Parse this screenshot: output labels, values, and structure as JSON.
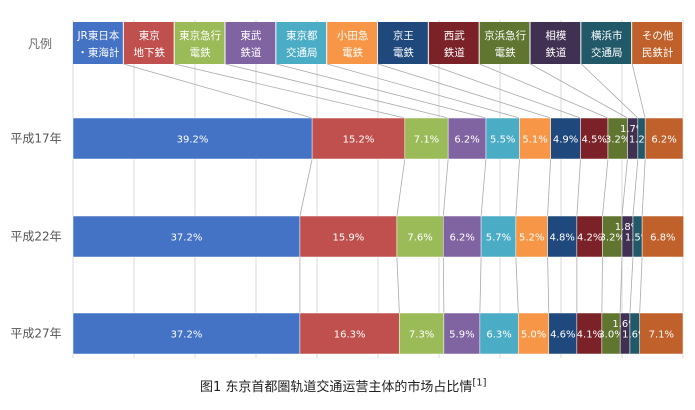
{
  "chart_data": {
    "type": "bar",
    "orientation": "horizontal",
    "stacked": true,
    "legend_label": "凡例",
    "legend_placement": "top",
    "categories": [
      "平成17年",
      "平成22年",
      "平成27年"
    ],
    "series": [
      {
        "name": "JR東日本・東海計",
        "color": "#4472c4",
        "values": [
          39.2,
          37.2,
          37.2
        ]
      },
      {
        "name": "東京地下鉄",
        "color": "#c0504d",
        "values": [
          15.2,
          15.9,
          16.3
        ]
      },
      {
        "name": "東京急行電鉄",
        "color": "#9bbb59",
        "values": [
          7.1,
          7.6,
          7.3
        ]
      },
      {
        "name": "東武鉄道",
        "color": "#8064a2",
        "values": [
          6.2,
          6.2,
          5.9
        ]
      },
      {
        "name": "東京都交通局",
        "color": "#4bacc6",
        "values": [
          5.5,
          5.7,
          6.3
        ]
      },
      {
        "name": "小田急電鉄",
        "color": "#f79646",
        "values": [
          5.1,
          5.2,
          5.0
        ]
      },
      {
        "name": "京王電鉄",
        "color": "#1f497d",
        "values": [
          4.9,
          4.8,
          4.6
        ]
      },
      {
        "name": "西武鉄道",
        "color": "#7a2227",
        "values": [
          4.5,
          4.2,
          4.1
        ]
      },
      {
        "name": "京浜急行電鉄",
        "color": "#5f7530",
        "values": [
          3.2,
          3.2,
          3.0
        ]
      },
      {
        "name": "相模鉄道",
        "color": "#403152",
        "values": [
          1.7,
          1.8,
          1.6
        ]
      },
      {
        "name": "横浜市交通局",
        "color": "#215968",
        "values": [
          1.2,
          1.5,
          1.6
        ]
      },
      {
        "name": "その他民鉄計",
        "color": "#c0612b",
        "values": [
          6.2,
          6.8,
          7.1
        ]
      }
    ],
    "legend_lines": [
      [
        "JR東日本",
        "・東海計"
      ],
      [
        "東京",
        "地下鉄"
      ],
      [
        "東京急行",
        "電鉄"
      ],
      [
        "東武",
        "鉄道"
      ],
      [
        "東京都",
        "交通局"
      ],
      [
        "小田急",
        "電鉄"
      ],
      [
        "京王",
        "電鉄"
      ],
      [
        "西武",
        "鉄道"
      ],
      [
        "京浜急行",
        "電鉄"
      ],
      [
        "相模",
        "鉄道"
      ],
      [
        "横浜市",
        "交通局"
      ],
      [
        "その他",
        "民鉄計"
      ]
    ],
    "value_suffix": "%",
    "grid": true,
    "xlim": [
      0,
      100
    ]
  },
  "caption": {
    "text": "图1 东京首都圏轨道交通运营主体的市场占比情",
    "ref": "[1]"
  }
}
